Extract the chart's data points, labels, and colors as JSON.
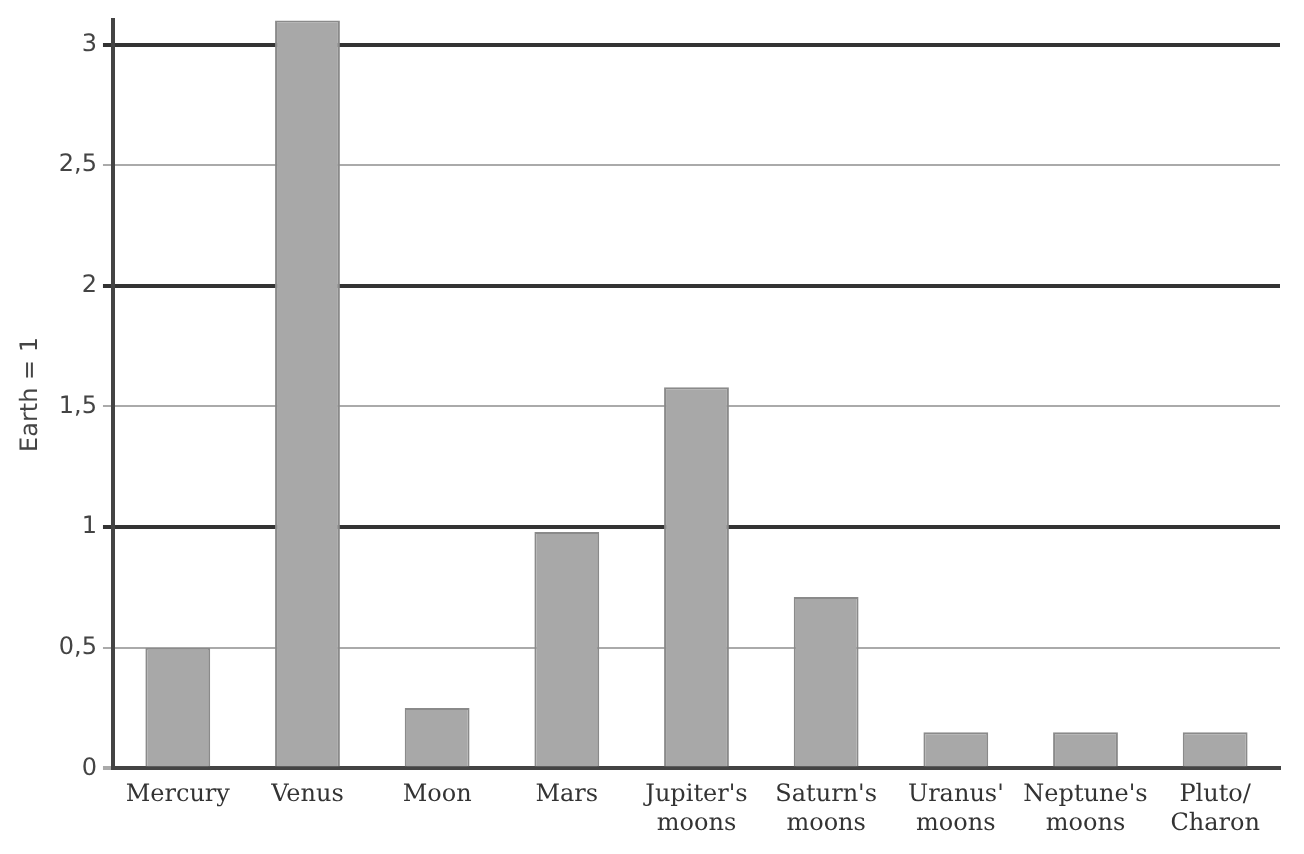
{
  "chart_data": {
    "type": "bar",
    "ylabel": "Earth = 1",
    "categories": [
      "Mercury",
      "Venus",
      "Moon",
      "Mars",
      "Jupiter's moons",
      "Saturn's moons",
      "Uranus' moons",
      "Neptune's moons",
      "Pluto/Charon"
    ],
    "values": [
      0.5,
      3.1,
      0.25,
      0.98,
      1.58,
      0.71,
      0.15,
      0.15,
      0.15
    ],
    "color": "#a8a8a8",
    "ylim": [
      0,
      3.1
    ],
    "yticks": [
      0,
      {
        "value": 0.5,
        "label": "0,5"
      },
      1,
      {
        "value": 1.5,
        "label": "1,5"
      },
      2,
      {
        "value": 2.5,
        "label": "2,5"
      },
      3
    ],
    "grid": "y",
    "legend": false
  }
}
